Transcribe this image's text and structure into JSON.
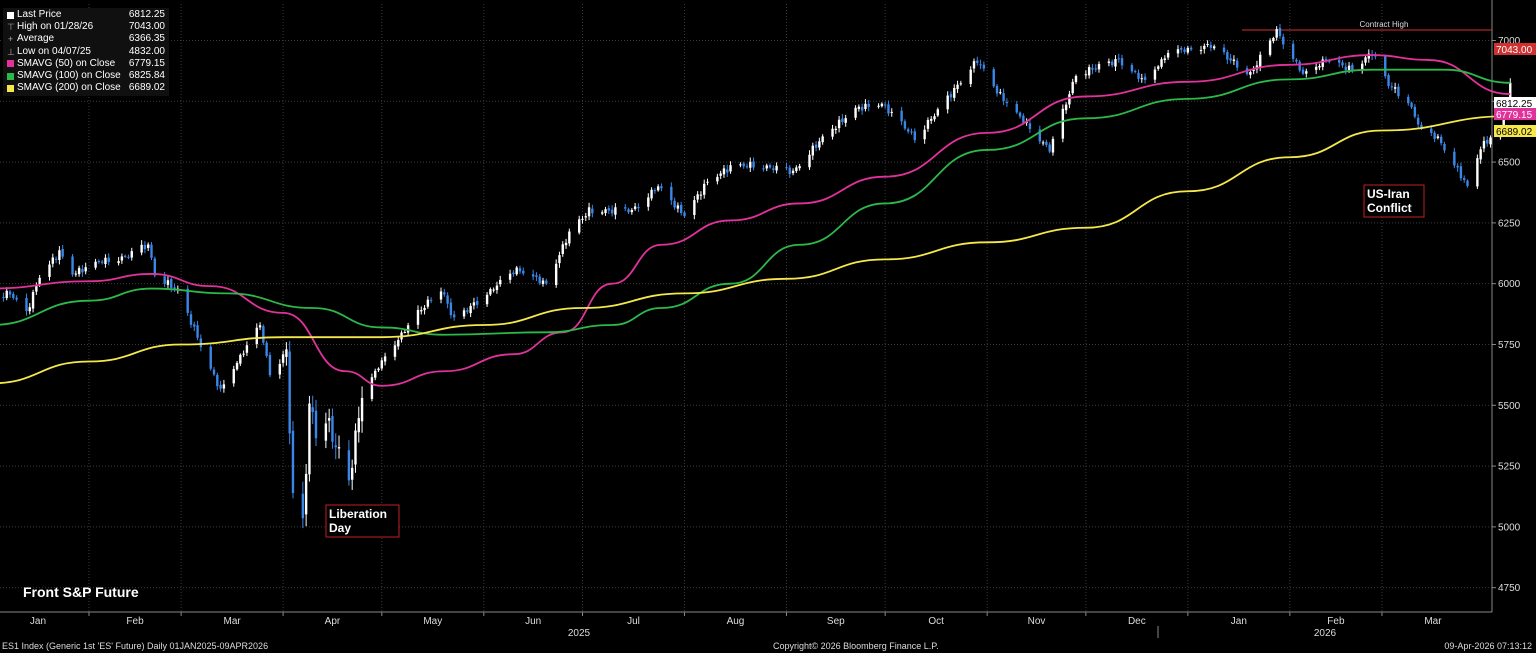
{
  "legend": [
    {
      "glyph": "square",
      "color": "#ffffff",
      "label": "Last Price",
      "value": "6812.25"
    },
    {
      "glyph": "high",
      "color": "#999999",
      "label": "High on 01/28/26",
      "value": "7043.00"
    },
    {
      "glyph": "avg",
      "color": "#999999",
      "label": "Average",
      "value": "6366.35"
    },
    {
      "glyph": "low",
      "color": "#999999",
      "label": "Low on 04/07/25",
      "value": "4832.00"
    },
    {
      "glyph": "square",
      "color": "#e0329a",
      "label": "SMAVG (50)  on Close",
      "value": "6779.15"
    },
    {
      "glyph": "square",
      "color": "#2db84a",
      "label": "SMAVG (100)  on Close",
      "value": "6825.84"
    },
    {
      "glyph": "square",
      "color": "#f5e84a",
      "label": "SMAVG (200)  on Close",
      "value": "6689.02"
    }
  ],
  "chart_title": "Front S&P Future",
  "footer": {
    "left": "ES1 Index (Generic 1st 'ES' Future) Daily 01JAN2025-09APR2026",
    "center": "Copyright© 2026 Bloomberg Finance L.P.",
    "right": "09-Apr-2026 07:13:12"
  },
  "colors": {
    "up": "#ffffff",
    "down": "#3a87e8",
    "sma50": "#e0329a",
    "sma100": "#2db84a",
    "sma200": "#f5e84a",
    "highline": "#d03030"
  },
  "chart_data": {
    "type": "line",
    "subtype": "candlestick",
    "ylim": [
      4650,
      7150
    ],
    "yticks": [
      "4750",
      "5000",
      "5250",
      "5500",
      "5750",
      "6000",
      "6250",
      "6500",
      "6750",
      "7000"
    ],
    "x_month_labels": [
      "Jan",
      "Feb",
      "Mar",
      "Apr",
      "May",
      "Jun",
      "Jul",
      "Aug",
      "Sep",
      "Oct",
      "Nov",
      "Dec",
      "Jan",
      "Feb",
      "Mar"
    ],
    "x_year_labels": [
      "2025",
      "2026"
    ],
    "grid": true,
    "price_tags": [
      {
        "label": "7043.00",
        "value": 7043,
        "color": "#d03030",
        "text_color": "#ffffff"
      },
      {
        "label": "6812.25",
        "value": 6812.25,
        "color": "#ffffff",
        "text_color": "#000000"
      },
      {
        "label": "6779.15",
        "value": 6779.15,
        "color": "#e0329a",
        "text_color": "#ffffff"
      },
      {
        "label": "6689.02",
        "value": 6689.02,
        "color": "#f5e84a",
        "text_color": "#000000"
      }
    ],
    "contract_high": {
      "label": "Contract High",
      "value": 7043
    },
    "annotations": [
      {
        "text": [
          "Liberation",
          "Day"
        ],
        "date": "2025-04-07"
      },
      {
        "text": [
          "US-Iran",
          "Conflict"
        ],
        "date": "2026-03-13"
      }
    ],
    "close_path": [
      [
        "2025-01-02",
        5950
      ],
      [
        "2025-01-08",
        5960
      ],
      [
        "2025-01-13",
        5880
      ],
      [
        "2025-01-17",
        6030
      ],
      [
        "2025-01-23",
        6130
      ],
      [
        "2025-01-27",
        6040
      ],
      [
        "2025-02-04",
        6090
      ],
      [
        "2025-02-12",
        6110
      ],
      [
        "2025-02-19",
        6160
      ],
      [
        "2025-02-21",
        6040
      ],
      [
        "2025-02-28",
        5970
      ],
      [
        "2025-03-06",
        5780
      ],
      [
        "2025-03-10",
        5650
      ],
      [
        "2025-03-13",
        5560
      ],
      [
        "2025-03-19",
        5700
      ],
      [
        "2025-03-25",
        5830
      ],
      [
        "2025-03-28",
        5630
      ],
      [
        "2025-04-02",
        5720
      ],
      [
        "2025-04-04",
        5110
      ],
      [
        "2025-04-07",
        5000
      ],
      [
        "2025-04-09",
        5500
      ],
      [
        "2025-04-11",
        5400
      ],
      [
        "2025-04-14",
        5450
      ],
      [
        "2025-04-21",
        5180
      ],
      [
        "2025-04-25",
        5550
      ],
      [
        "2025-05-02",
        5700
      ],
      [
        "2025-05-12",
        5880
      ],
      [
        "2025-05-19",
        5980
      ],
      [
        "2025-05-23",
        5850
      ],
      [
        "2025-06-02",
        5960
      ],
      [
        "2025-06-11",
        6060
      ],
      [
        "2025-06-20",
        6000
      ],
      [
        "2025-06-27",
        6210
      ],
      [
        "2025-07-03",
        6300
      ],
      [
        "2025-07-16",
        6300
      ],
      [
        "2025-07-24",
        6400
      ],
      [
        "2025-08-01",
        6280
      ],
      [
        "2025-08-08",
        6420
      ],
      [
        "2025-08-15",
        6480
      ],
      [
        "2025-08-22",
        6490
      ],
      [
        "2025-09-03",
        6460
      ],
      [
        "2025-09-12",
        6600
      ],
      [
        "2025-09-22",
        6720
      ],
      [
        "2025-09-30",
        6740
      ],
      [
        "2025-10-10",
        6600
      ],
      [
        "2025-10-17",
        6710
      ],
      [
        "2025-10-29",
        6920
      ],
      [
        "2025-11-04",
        6790
      ],
      [
        "2025-11-20",
        6550
      ],
      [
        "2025-11-28",
        6860
      ],
      [
        "2025-12-11",
        6920
      ],
      [
        "2025-12-19",
        6830
      ],
      [
        "2025-12-26",
        6950
      ],
      [
        "2026-01-08",
        6980
      ],
      [
        "2026-01-20",
        6860
      ],
      [
        "2026-01-28",
        7040
      ],
      [
        "2026-02-05",
        6860
      ],
      [
        "2026-02-12",
        6920
      ],
      [
        "2026-02-20",
        6880
      ],
      [
        "2026-02-26",
        6950
      ],
      [
        "2026-03-03",
        6820
      ],
      [
        "2026-03-09",
        6750
      ],
      [
        "2026-03-13",
        6630
      ],
      [
        "2026-03-18",
        6600
      ],
      [
        "2026-03-27",
        6400
      ],
      [
        "2026-03-31",
        6560
      ],
      [
        "2026-04-03",
        6600
      ],
      [
        "2026-04-06",
        6630
      ],
      [
        "2026-04-09",
        6812.25
      ]
    ],
    "series": [
      {
        "name": "SMAVG (50)  on Close",
        "color": "#e0329a",
        "points": [
          [
            "2025-01-02",
            5980
          ],
          [
            "2025-02-01",
            6010
          ],
          [
            "2025-02-20",
            6040
          ],
          [
            "2025-03-10",
            5990
          ],
          [
            "2025-04-01",
            5880
          ],
          [
            "2025-04-20",
            5640
          ],
          [
            "2025-05-01",
            5580
          ],
          [
            "2025-05-20",
            5640
          ],
          [
            "2025-06-10",
            5710
          ],
          [
            "2025-06-25",
            5800
          ],
          [
            "2025-07-10",
            6000
          ],
          [
            "2025-07-25",
            6160
          ],
          [
            "2025-08-15",
            6260
          ],
          [
            "2025-09-05",
            6330
          ],
          [
            "2025-10-01",
            6440
          ],
          [
            "2025-11-01",
            6620
          ],
          [
            "2025-12-01",
            6770
          ],
          [
            "2026-01-01",
            6830
          ],
          [
            "2026-02-01",
            6900
          ],
          [
            "2026-02-26",
            6940
          ],
          [
            "2026-03-15",
            6920
          ],
          [
            "2026-04-09",
            6779.15
          ]
        ]
      },
      {
        "name": "SMAVG (100)  on Close",
        "color": "#2db84a",
        "points": [
          [
            "2025-01-02",
            5830
          ],
          [
            "2025-02-01",
            5930
          ],
          [
            "2025-02-20",
            5980
          ],
          [
            "2025-03-15",
            5960
          ],
          [
            "2025-04-10",
            5900
          ],
          [
            "2025-05-01",
            5820
          ],
          [
            "2025-05-20",
            5790
          ],
          [
            "2025-06-20",
            5800
          ],
          [
            "2025-07-10",
            5830
          ],
          [
            "2025-07-25",
            5900
          ],
          [
            "2025-08-15",
            6000
          ],
          [
            "2025-09-05",
            6160
          ],
          [
            "2025-10-01",
            6330
          ],
          [
            "2025-11-01",
            6550
          ],
          [
            "2025-12-01",
            6680
          ],
          [
            "2026-01-01",
            6760
          ],
          [
            "2026-02-01",
            6840
          ],
          [
            "2026-02-26",
            6880
          ],
          [
            "2026-03-20",
            6880
          ],
          [
            "2026-04-09",
            6825.84
          ]
        ]
      },
      {
        "name": "SMAVG (200)  on Close",
        "color": "#f5e84a",
        "points": [
          [
            "2025-01-02",
            5590
          ],
          [
            "2025-02-01",
            5680
          ],
          [
            "2025-03-01",
            5750
          ],
          [
            "2025-04-01",
            5780
          ],
          [
            "2025-05-01",
            5780
          ],
          [
            "2025-06-01",
            5830
          ],
          [
            "2025-07-01",
            5900
          ],
          [
            "2025-08-01",
            5960
          ],
          [
            "2025-09-01",
            6020
          ],
          [
            "2025-10-01",
            6100
          ],
          [
            "2025-11-01",
            6170
          ],
          [
            "2025-12-01",
            6230
          ],
          [
            "2026-01-01",
            6380
          ],
          [
            "2026-02-01",
            6520
          ],
          [
            "2026-03-01",
            6630
          ],
          [
            "2026-04-09",
            6689.02
          ]
        ]
      }
    ]
  }
}
